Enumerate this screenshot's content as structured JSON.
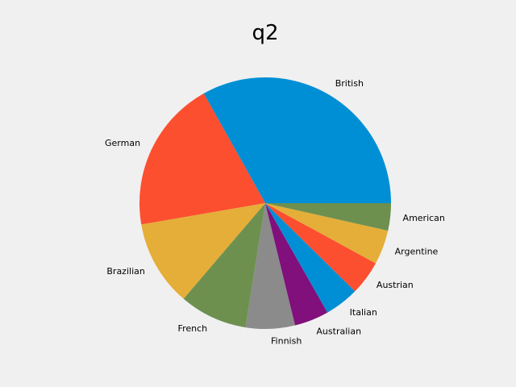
{
  "chart_data": {
    "type": "pie",
    "title": "q2",
    "start_angle_deg": 0,
    "direction": "counterclockwise",
    "slices": [
      {
        "label": "British",
        "value": 33.0,
        "color": "#008fd5"
      },
      {
        "label": "German",
        "value": 19.5,
        "color": "#fc4f30"
      },
      {
        "label": "Brazilian",
        "value": 11.0,
        "color": "#e5ae38"
      },
      {
        "label": "French",
        "value": 8.7,
        "color": "#6d904f"
      },
      {
        "label": "Finnish",
        "value": 6.3,
        "color": "#8b8b8b"
      },
      {
        "label": "Australian",
        "value": 4.4,
        "color": "#810f7c"
      },
      {
        "label": "Italian",
        "value": 4.4,
        "color": "#008fd5"
      },
      {
        "label": "Austrian",
        "value": 4.4,
        "color": "#fc4f30"
      },
      {
        "label": "Argentine",
        "value": 4.4,
        "color": "#e5ae38"
      },
      {
        "label": "American",
        "value": 3.5,
        "color": "#6d904f"
      }
    ]
  }
}
